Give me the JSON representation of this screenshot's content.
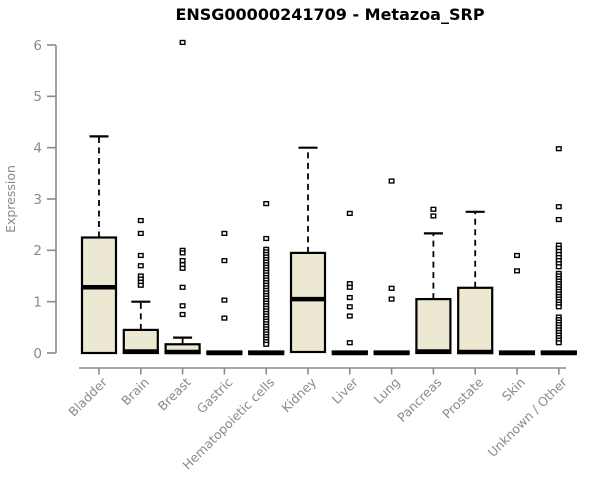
{
  "chart_data": {
    "type": "boxplot",
    "title": "ENSG00000241709 - Metazoa_SRP",
    "ylabel": "Expression",
    "xlabel": "",
    "ylim": [
      0,
      6
    ],
    "yticks": [
      0,
      1,
      2,
      3,
      4,
      5,
      6
    ],
    "grid": false,
    "legend": "none",
    "axis_color": "#8a8a8a",
    "box_fill": "#ede8d1",
    "box_stroke": "#000000",
    "outlier_color": "#000000",
    "categories": [
      "Bladder",
      "Brain",
      "Breast",
      "Gastric",
      "Hematopoietic cells",
      "Kidney",
      "Liver",
      "Lung",
      "Pancreas",
      "Prostate",
      "Skin",
      "Unknown / Other"
    ],
    "series": [
      {
        "name": "Bladder",
        "whisker_low": 0,
        "q1": 0,
        "median": 1.28,
        "q3": 2.25,
        "whisker_high": 4.22,
        "outliers": []
      },
      {
        "name": "Brain",
        "whisker_low": 0,
        "q1": 0,
        "median": 0.03,
        "q3": 0.45,
        "whisker_high": 1.0,
        "outliers": [
          2.58,
          2.33,
          1.9,
          1.7,
          1.5,
          1.44,
          1.38,
          1.32
        ]
      },
      {
        "name": "Breast",
        "whisker_low": 0,
        "q1": 0,
        "median": 0.02,
        "q3": 0.17,
        "whisker_high": 0.3,
        "outliers": [
          6.05,
          2.0,
          1.95,
          1.8,
          1.72,
          1.65,
          1.28,
          0.92,
          0.75
        ]
      },
      {
        "name": "Gastric",
        "whisker_low": 0,
        "q1": 0,
        "median": 0,
        "q3": 0.03,
        "whisker_high": 0.03,
        "outliers": [
          2.33,
          1.8,
          1.03,
          0.68
        ]
      },
      {
        "name": "Hematopoietic cells",
        "whisker_low": 0,
        "q1": 0,
        "median": 0,
        "q3": 0.03,
        "whisker_high": 0.03,
        "outliers": [
          2.91,
          2.23,
          2.02,
          1.97,
          1.92,
          1.87,
          1.82,
          1.77,
          1.72,
          1.67,
          1.62,
          1.57,
          1.52,
          1.47,
          1.42,
          1.37,
          1.32,
          1.27,
          1.22,
          1.17,
          1.12,
          1.07,
          1.02,
          0.97,
          0.92,
          0.87,
          0.82,
          0.77,
          0.72,
          0.67,
          0.62,
          0.57,
          0.52,
          0.47,
          0.42,
          0.37,
          0.32,
          0.27,
          0.22,
          0.17
        ]
      },
      {
        "name": "Kidney",
        "whisker_low": 0,
        "q1": 0.02,
        "median": 1.05,
        "q3": 1.95,
        "whisker_high": 4.0,
        "outliers": []
      },
      {
        "name": "Liver",
        "whisker_low": 0,
        "q1": 0,
        "median": 0,
        "q3": 0.03,
        "whisker_high": 0.03,
        "outliers": [
          2.72,
          1.35,
          1.28,
          1.08,
          0.9,
          0.72,
          0.2
        ]
      },
      {
        "name": "Lung",
        "whisker_low": 0,
        "q1": 0,
        "median": 0,
        "q3": 0.03,
        "whisker_high": 0.03,
        "outliers": [
          3.35,
          1.26,
          1.05
        ]
      },
      {
        "name": "Pancreas",
        "whisker_low": 0,
        "q1": 0,
        "median": 0.03,
        "q3": 1.05,
        "whisker_high": 2.33,
        "outliers": [
          2.8,
          2.67
        ]
      },
      {
        "name": "Prostate",
        "whisker_low": 0,
        "q1": 0,
        "median": 0.02,
        "q3": 1.27,
        "whisker_high": 2.75,
        "outliers": []
      },
      {
        "name": "Skin",
        "whisker_low": 0,
        "q1": 0,
        "median": 0,
        "q3": 0.03,
        "whisker_high": 0.03,
        "outliers": [
          1.9,
          1.6
        ]
      },
      {
        "name": "Unknown / Other",
        "whisker_low": 0,
        "q1": 0,
        "median": 0,
        "q3": 0.03,
        "whisker_high": 0.03,
        "outliers": [
          3.98,
          2.85,
          2.6,
          2.1,
          2.04,
          1.98,
          1.92,
          1.86,
          1.8,
          1.74,
          1.68,
          1.55,
          1.5,
          1.45,
          1.4,
          1.35,
          1.3,
          1.25,
          1.2,
          1.15,
          1.1,
          1.05,
          1.0,
          0.95,
          0.9,
          0.7,
          0.65,
          0.6,
          0.55,
          0.5,
          0.45,
          0.4,
          0.35,
          0.3,
          0.25,
          0.2
        ]
      }
    ]
  }
}
